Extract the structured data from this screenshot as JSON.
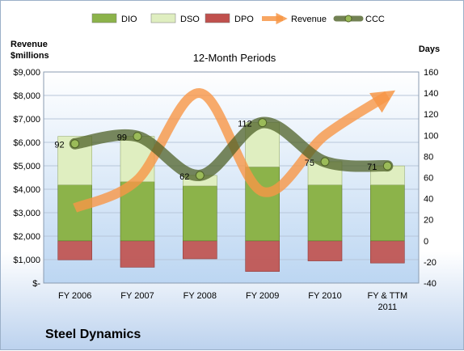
{
  "company": "Steel Dynamics",
  "chart_data": {
    "type": "bar",
    "title": "12-Month Periods",
    "left_axis_label_line1": "Revenue",
    "left_axis_label_line2": "$millions",
    "right_axis_label": "Days",
    "categories": [
      "FY 2006",
      "FY 2007",
      "FY 2008",
      "FY 2009",
      "FY 2010",
      "FY & TTM 2011"
    ],
    "left_axis": {
      "ylim": [
        0,
        9000
      ],
      "ticks": [
        "$-",
        "$1,000",
        "$2,000",
        "$3,000",
        "$4,000",
        "$5,000",
        "$6,000",
        "$7,000",
        "$8,000",
        "$9,000"
      ]
    },
    "right_axis": {
      "ylim": [
        -40,
        160
      ],
      "ticks": [
        "-40",
        "-20",
        "0",
        "20",
        "40",
        "60",
        "80",
        "100",
        "120",
        "140",
        "160"
      ]
    },
    "legend_position": "top",
    "series": [
      {
        "name": "DIO",
        "kind": "stacked-bar",
        "axis": "days",
        "color": "#8cb34a",
        "values": [
          53,
          56,
          52,
          70,
          53,
          53
        ]
      },
      {
        "name": "DSO",
        "kind": "stacked-bar",
        "axis": "days",
        "color": "#dfeec0",
        "values": [
          46,
          43,
          10,
          42,
          22,
          18
        ]
      },
      {
        "name": "DPO",
        "kind": "stacked-bar",
        "axis": "days",
        "color": "#c0504d",
        "values": [
          -18,
          -25,
          -17,
          -29,
          -19,
          -21
        ]
      },
      {
        "name": "Revenue",
        "kind": "line",
        "axis": "revenue",
        "color": "#f79646",
        "values": [
          3200,
          4400,
          8100,
          3900,
          6300,
          8000
        ]
      },
      {
        "name": "CCC",
        "kind": "line",
        "axis": "days",
        "color": "#4f6228",
        "values": [
          92,
          99,
          62,
          112,
          75,
          71
        ],
        "data_labels": [
          "92",
          "99",
          "62",
          "112",
          "75",
          "71"
        ]
      }
    ]
  }
}
